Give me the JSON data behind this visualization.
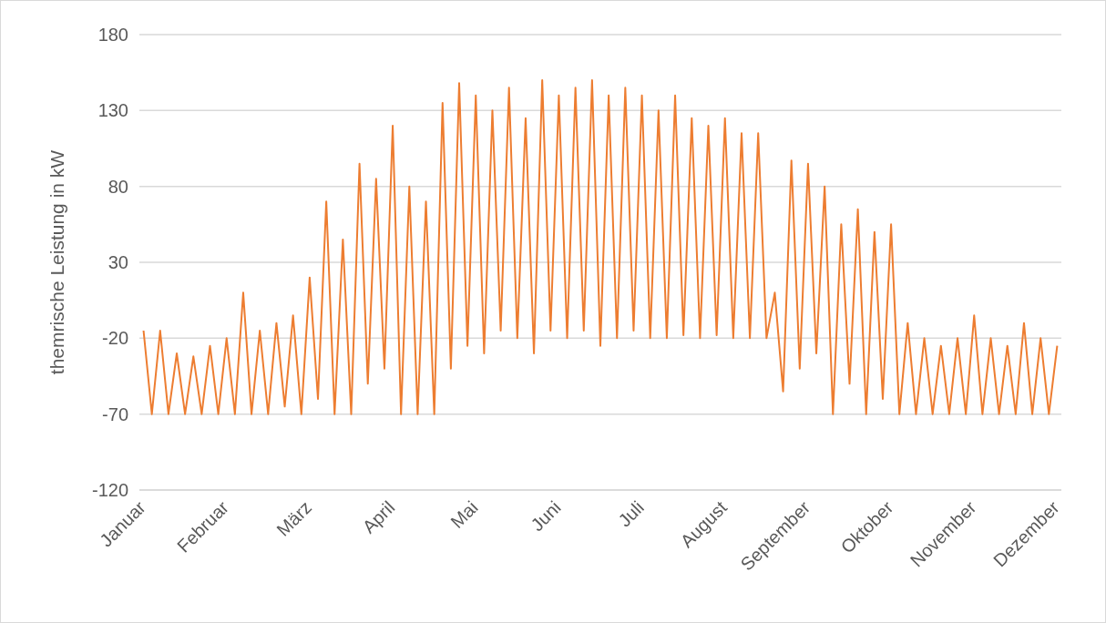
{
  "chart_data": {
    "type": "line",
    "ylabel": "themrische Leistung in kW",
    "categories": [
      "Januar",
      null,
      null,
      null,
      null,
      null,
      null,
      null,
      null,
      null,
      "Februar",
      null,
      null,
      null,
      null,
      null,
      null,
      null,
      null,
      null,
      "März",
      null,
      null,
      null,
      null,
      null,
      null,
      null,
      null,
      null,
      "April",
      null,
      null,
      null,
      null,
      null,
      null,
      null,
      null,
      null,
      "Mai",
      null,
      null,
      null,
      null,
      null,
      null,
      null,
      null,
      null,
      "Juni",
      null,
      null,
      null,
      null,
      null,
      null,
      null,
      null,
      null,
      "Juli",
      null,
      null,
      null,
      null,
      null,
      null,
      null,
      null,
      null,
      "August",
      null,
      null,
      null,
      null,
      null,
      null,
      null,
      null,
      null,
      "September",
      null,
      null,
      null,
      null,
      null,
      null,
      null,
      null,
      null,
      "Oktober",
      null,
      null,
      null,
      null,
      null,
      null,
      null,
      null,
      null,
      "November",
      null,
      null,
      null,
      null,
      null,
      null,
      null,
      null,
      null,
      "Dezember"
    ],
    "series": [
      {
        "color": "#ed7d31",
        "values": [
          -15,
          -70,
          -15,
          -70,
          -30,
          -70,
          -32,
          -70,
          -25,
          -70,
          -20,
          -70,
          10,
          -70,
          -15,
          -70,
          -10,
          -65,
          -5,
          -70,
          20,
          -60,
          70,
          -70,
          45,
          -70,
          95,
          -50,
          85,
          -40,
          120,
          -70,
          80,
          -70,
          70,
          -70,
          135,
          -40,
          148,
          -25,
          140,
          -30,
          130,
          -15,
          145,
          -20,
          125,
          -30,
          150,
          -15,
          140,
          -20,
          145,
          -15,
          150,
          -25,
          140,
          -20,
          145,
          -15,
          140,
          -20,
          130,
          -20,
          140,
          -18,
          125,
          -20,
          120,
          -18,
          125,
          -20,
          115,
          -20,
          115,
          -20,
          10,
          -55,
          97,
          -40,
          95,
          -30,
          80,
          -70,
          55,
          -50,
          65,
          -70,
          50,
          -60,
          55,
          -70,
          -10,
          -70,
          -20,
          -70,
          -25,
          -70,
          -20,
          -70,
          -5,
          -70,
          -20,
          -70,
          -25,
          -70,
          -10,
          -70,
          -20,
          -70,
          -25
        ]
      }
    ],
    "ylim": [
      -120,
      180
    ],
    "yticks": [
      -120,
      -70,
      -20,
      30,
      80,
      130,
      180
    ],
    "grid": "y",
    "line_style": "solid",
    "marker": "none"
  }
}
